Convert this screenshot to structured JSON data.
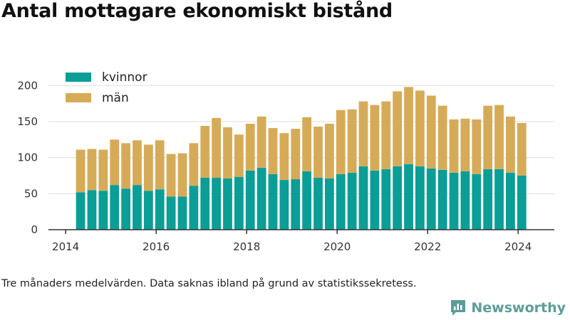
{
  "title": "Antal mottagare ekonomiskt bistånd",
  "footnote": "Tre månaders medelvärden. Data saknas ibland på grund av statistikssekretess.",
  "brand": {
    "name": "Newsworthy",
    "logo_icon": "newsworthy-logo-icon"
  },
  "colors": {
    "kvinnor": "#0a9e96",
    "man": "#d6ab58",
    "grid": "#dddddd",
    "axis": "#333333"
  },
  "chart_data": {
    "type": "bar",
    "stacked": true,
    "title": "Antal mottagare ekonomiskt bistånd",
    "xlabel": "",
    "ylabel": "",
    "ylim": [
      0,
      220
    ],
    "xlim": [
      2013.62,
      2024.8
    ],
    "yticks": [
      0,
      50,
      100,
      150,
      200
    ],
    "xticks": [
      2014,
      2016,
      2018,
      2020,
      2022,
      2024
    ],
    "legend": "top-left",
    "grid": "horizontal",
    "x": [
      2014.33,
      2014.58,
      2014.83,
      2015.08,
      2015.33,
      2015.58,
      2015.83,
      2016.08,
      2016.33,
      2016.58,
      2016.83,
      2017.08,
      2017.33,
      2017.58,
      2017.83,
      2018.08,
      2018.33,
      2018.58,
      2018.83,
      2019.08,
      2019.33,
      2019.58,
      2019.83,
      2020.08,
      2020.33,
      2020.58,
      2020.83,
      2021.08,
      2021.33,
      2021.58,
      2021.83,
      2022.08,
      2022.33,
      2022.58,
      2022.83,
      2023.08,
      2023.33,
      2023.58,
      2023.83,
      2024.08
    ],
    "series": [
      {
        "name": "kvinnor",
        "values": [
          52,
          55,
          54,
          62,
          57,
          62,
          54,
          56,
          46,
          46,
          61,
          72,
          72,
          71,
          73,
          82,
          86,
          77,
          69,
          70,
          81,
          72,
          71,
          77,
          79,
          88,
          82,
          84,
          88,
          91,
          88,
          85,
          83,
          79,
          81,
          77,
          84,
          84,
          79,
          75
        ]
      },
      {
        "name": "män",
        "values": [
          59,
          57,
          57,
          63,
          63,
          62,
          64,
          68,
          59,
          60,
          59,
          72,
          83,
          71,
          59,
          65,
          71,
          64,
          65,
          70,
          75,
          71,
          76,
          89,
          88,
          90,
          91,
          94,
          104,
          107,
          105,
          101,
          89,
          74,
          73,
          76,
          88,
          89,
          78,
          73
        ]
      }
    ]
  }
}
